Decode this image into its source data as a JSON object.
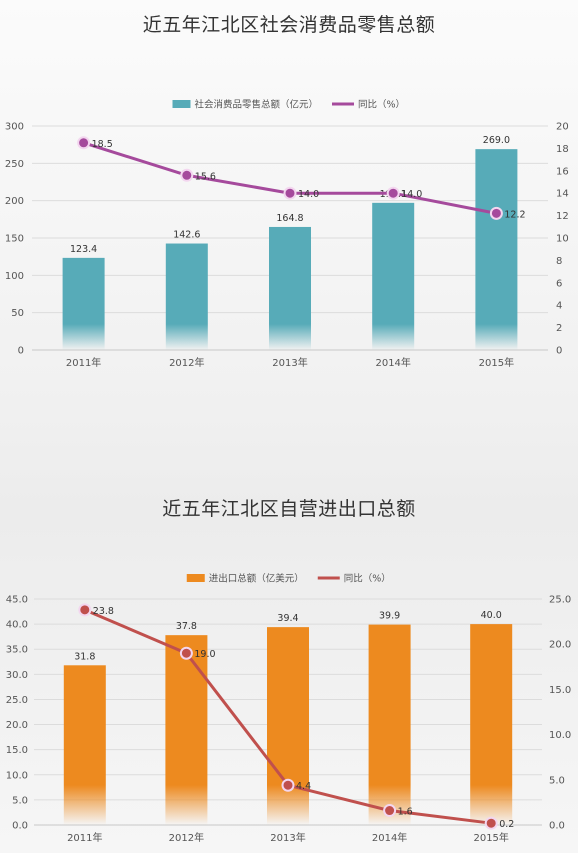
{
  "chart_data": [
    {
      "type": "bar",
      "title": "近五年江北区社会消费品零售总额",
      "categories": [
        "2011年",
        "2012年",
        "2013年",
        "2014年",
        "2015年"
      ],
      "series": [
        {
          "name": "社会消费品零售总额（亿元）",
          "type": "bar",
          "axis": "left",
          "values": [
            123.4,
            142.6,
            164.8,
            197.1,
            269.0
          ],
          "labels": [
            "123.4",
            "142.6",
            "164.8",
            "197.1",
            "269.0"
          ],
          "color": "#57abb8"
        },
        {
          "name": "同比（%）",
          "type": "line",
          "axis": "right",
          "values": [
            18.5,
            15.6,
            14.0,
            14.0,
            12.2
          ],
          "labels": [
            "18.5",
            "15.6",
            "14.0",
            "14.0",
            "12.2"
          ],
          "color": "#a54a9c"
        }
      ],
      "y_left": {
        "min": 0,
        "max": 300,
        "ticks": [
          "0",
          "50",
          "100",
          "150",
          "200",
          "250",
          "300"
        ]
      },
      "y_right": {
        "min": 0,
        "max": 20,
        "ticks": [
          "0",
          "2",
          "4",
          "6",
          "8",
          "10",
          "12",
          "14",
          "16",
          "18",
          "20"
        ]
      },
      "grid": true,
      "legend": "top-center"
    },
    {
      "type": "bar",
      "title": "近五年江北区自营进出口总额",
      "categories": [
        "2011年",
        "2012年",
        "2013年",
        "2014年",
        "2015年"
      ],
      "series": [
        {
          "name": "进出口总额（亿美元）",
          "type": "bar",
          "axis": "left",
          "values": [
            31.8,
            37.8,
            39.4,
            39.9,
            40.0
          ],
          "labels": [
            "31.8",
            "37.8",
            "39.4",
            "39.9",
            "40.0"
          ],
          "color": "#ed8a1f"
        },
        {
          "name": "同比（%）",
          "type": "line",
          "axis": "right",
          "values": [
            23.8,
            19.0,
            4.4,
            1.6,
            0.2
          ],
          "labels": [
            "23.8",
            "19.0",
            "4.4",
            "1.6",
            "0.2"
          ],
          "color": "#c0504d"
        }
      ],
      "y_left": {
        "min": 0,
        "max": 45,
        "ticks": [
          "0.0",
          "5.0",
          "10.0",
          "15.0",
          "20.0",
          "25.0",
          "30.0",
          "35.0",
          "40.0",
          "45.0"
        ]
      },
      "y_right": {
        "min": 0,
        "max": 25,
        "ticks": [
          "0.0",
          "5.0",
          "10.0",
          "15.0",
          "20.0",
          "25.0"
        ]
      },
      "grid": true,
      "legend": "top-center"
    }
  ]
}
